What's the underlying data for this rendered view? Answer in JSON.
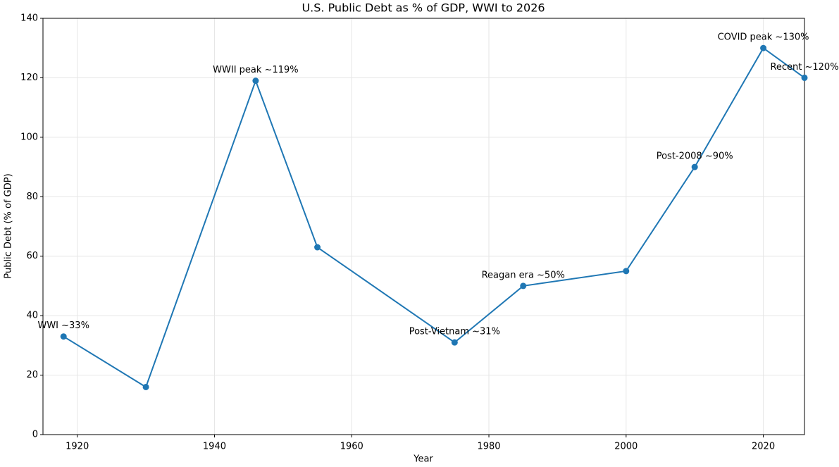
{
  "chart_data": {
    "type": "line",
    "title": "U.S. Public Debt as % of GDP, WWI to 2026",
    "xlabel": "Year",
    "ylabel": "Public Debt (% of GDP)",
    "x": [
      1918,
      1930,
      1946,
      1955,
      1975,
      1985,
      2000,
      2010,
      2020,
      2026
    ],
    "series": [
      {
        "name": "Public Debt",
        "color": "#1f77b4",
        "values": [
          33,
          16,
          119,
          63,
          31,
          50,
          55,
          90,
          130,
          120
        ]
      }
    ],
    "xlim": [
      1915,
      2026
    ],
    "xticks": [
      1920,
      1940,
      1960,
      1980,
      2000,
      2020
    ],
    "ylim": [
      0,
      140
    ],
    "yticks": [
      0,
      20,
      40,
      60,
      80,
      100,
      120,
      140
    ],
    "grid": true,
    "annotations": [
      {
        "text": "WWI ~33%",
        "x": 1918,
        "y": 33
      },
      {
        "text": "WWII peak ~119%",
        "x": 1946,
        "y": 119
      },
      {
        "text": "Post-Vietnam ~31%",
        "x": 1975,
        "y": 31
      },
      {
        "text": "Reagan era ~50%",
        "x": 1985,
        "y": 50
      },
      {
        "text": "Post-2008 ~90%",
        "x": 2010,
        "y": 90
      },
      {
        "text": "COVID peak ~130%",
        "x": 2020,
        "y": 130
      },
      {
        "text": "Recent ~120%",
        "x": 2026,
        "y": 120
      }
    ]
  }
}
